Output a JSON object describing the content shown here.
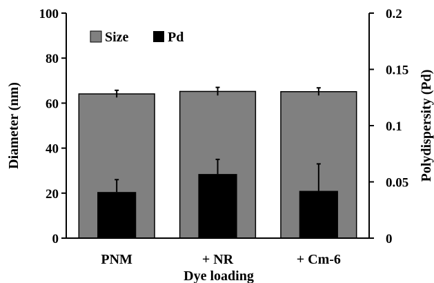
{
  "chart_data": {
    "type": "bar",
    "title": "",
    "xlabel": "Dye loading",
    "categories": [
      "PNM",
      "+ NR",
      "+ Cm-6"
    ],
    "y_left": {
      "label": "Diameter (nm)",
      "ylim": [
        0,
        100
      ],
      "ticks": [
        0,
        20,
        40,
        60,
        80,
        100
      ],
      "tick_labels": [
        "0",
        "20",
        "40",
        "60",
        "80",
        "100"
      ]
    },
    "y_right": {
      "label": "Polydispersity (Pd)",
      "ylim": [
        0,
        0.2
      ],
      "ticks": [
        0,
        0.05,
        0.1,
        0.15,
        0.2
      ],
      "tick_labels": [
        "0",
        "0.05",
        "0.1",
        "0.15",
        "0.2"
      ]
    },
    "series": [
      {
        "name": "Size",
        "axis": "left",
        "color": "#808080",
        "values": [
          64.1,
          65.2,
          65.1
        ],
        "errors": [
          1.6,
          1.8,
          1.7
        ]
      },
      {
        "name": "Pd",
        "axis": "right",
        "color": "#000000",
        "values": [
          0.041,
          0.057,
          0.042
        ],
        "errors": [
          0.011,
          0.013,
          0.024
        ]
      }
    ],
    "legend": {
      "position": "top-left"
    },
    "grid": false
  }
}
